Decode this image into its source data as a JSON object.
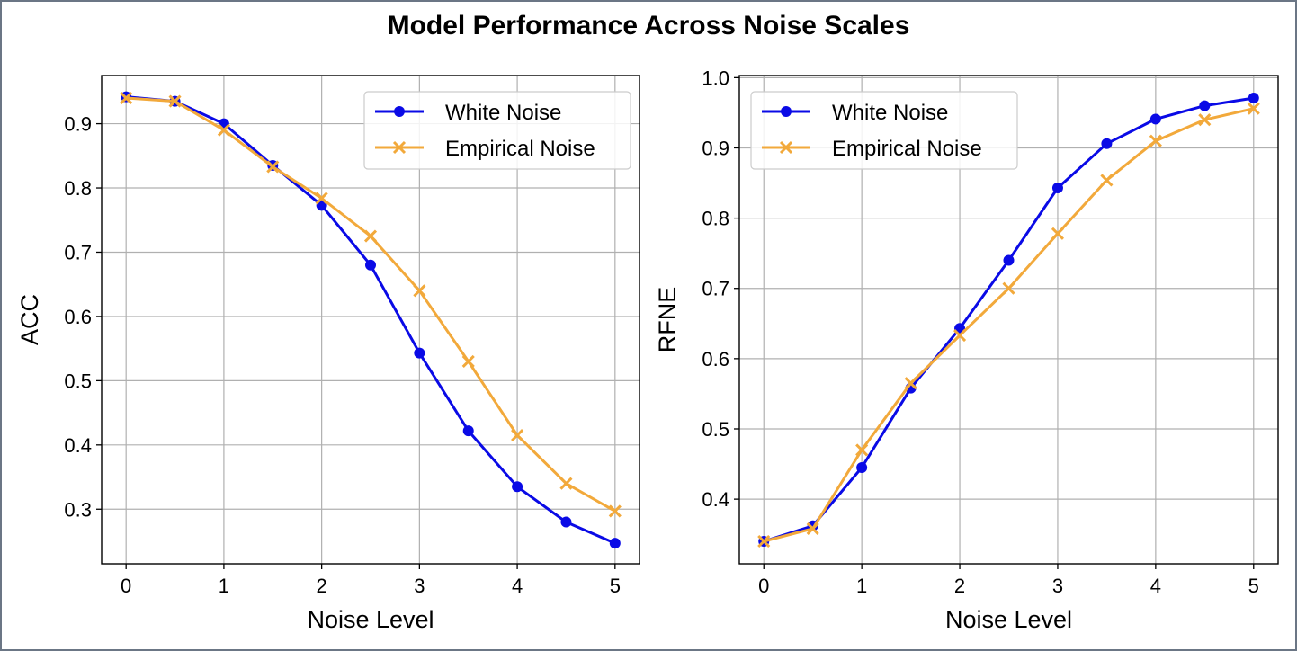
{
  "title": "Model Performance Across Noise Scales",
  "colors": {
    "white_noise": "#0a0ae6",
    "empirical_noise": "#f2a93b",
    "grid": "#b0b0b0"
  },
  "chart_data": [
    {
      "type": "line",
      "title": "",
      "xlabel": "Noise Level",
      "ylabel": "ACC",
      "xlim": [
        -0.25,
        5.25
      ],
      "ylim": [
        0.215,
        0.975
      ],
      "xticks": [
        0,
        1,
        2,
        3,
        4,
        5
      ],
      "yticks": [
        0.3,
        0.4,
        0.5,
        0.6,
        0.7,
        0.8,
        0.9
      ],
      "grid": true,
      "legend": "top-right",
      "x": [
        0,
        0.5,
        1,
        1.5,
        2,
        2.5,
        3,
        3.5,
        4,
        4.5,
        5
      ],
      "series": [
        {
          "name": "White Noise",
          "marker": "circle",
          "values": [
            0.942,
            0.935,
            0.9,
            0.835,
            0.773,
            0.68,
            0.543,
            0.422,
            0.335,
            0.28,
            0.247
          ]
        },
        {
          "name": "Empirical Noise",
          "marker": "x",
          "values": [
            0.94,
            0.935,
            0.89,
            0.833,
            0.784,
            0.725,
            0.64,
            0.53,
            0.415,
            0.34,
            0.297
          ]
        }
      ]
    },
    {
      "type": "line",
      "title": "",
      "xlabel": "Noise Level",
      "ylabel": "RFNE",
      "xlim": [
        -0.25,
        5.25
      ],
      "ylim": [
        0.308,
        1.003
      ],
      "xticks": [
        0,
        1,
        2,
        3,
        4,
        5
      ],
      "yticks": [
        0.4,
        0.5,
        0.6,
        0.7,
        0.8,
        0.9,
        1.0
      ],
      "ytick_labels": [
        "0.4",
        "0.5",
        "0.6",
        "0.7",
        "0.8",
        "0.9",
        "1.0"
      ],
      "grid": true,
      "legend": "top-left",
      "x": [
        0,
        0.5,
        1,
        1.5,
        2,
        2.5,
        3,
        3.5,
        4,
        4.5,
        5
      ],
      "series": [
        {
          "name": "White Noise",
          "marker": "circle",
          "values": [
            0.34,
            0.362,
            0.445,
            0.558,
            0.643,
            0.74,
            0.843,
            0.906,
            0.941,
            0.96,
            0.971
          ]
        },
        {
          "name": "Empirical Noise",
          "marker": "x",
          "values": [
            0.34,
            0.358,
            0.47,
            0.565,
            0.633,
            0.7,
            0.778,
            0.854,
            0.91,
            0.94,
            0.956
          ]
        }
      ]
    }
  ]
}
